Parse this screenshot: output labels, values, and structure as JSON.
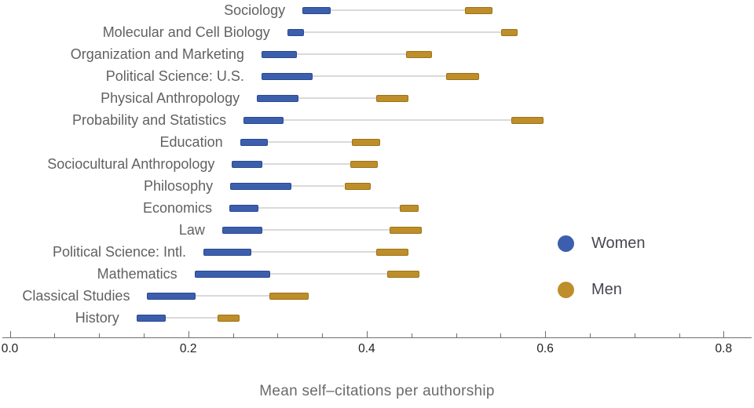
{
  "chart_data": {
    "type": "dumbbell",
    "orientation": "horizontal",
    "title": "",
    "xlabel": "Mean self–citations per authorship",
    "ylabel": "",
    "xlim": [
      0,
      0.83
    ],
    "x_major_tick_labels": [
      "0.0",
      "0.2",
      "0.4",
      "0.6",
      "0.8"
    ],
    "x_major_tick_values": [
      0,
      0.2,
      0.4,
      0.6,
      0.8
    ],
    "x_minor_tick_step": 0.05,
    "grid": false,
    "legend_position": "right-center",
    "series": [
      {
        "name": "Women",
        "color": "#3c5fad",
        "marker": "thick range bar"
      },
      {
        "name": "Men",
        "color": "#be8e2b",
        "marker": "thick range bar"
      }
    ],
    "rows": [
      {
        "category": "Sociology",
        "women_range": [
          0.328,
          0.358
        ],
        "men_range": [
          0.51,
          0.539
        ]
      },
      {
        "category": "Molecular and Cell Biology",
        "women_range": [
          0.311,
          0.328
        ],
        "men_range": [
          0.551,
          0.567
        ]
      },
      {
        "category": "Organization and Marketing",
        "women_range": [
          0.282,
          0.32
        ],
        "men_range": [
          0.444,
          0.471
        ]
      },
      {
        "category": "Political Science: U.S.",
        "women_range": [
          0.282,
          0.338
        ],
        "men_range": [
          0.489,
          0.524
        ]
      },
      {
        "category": "Physical Anthropology",
        "women_range": [
          0.277,
          0.322
        ],
        "men_range": [
          0.411,
          0.445
        ]
      },
      {
        "category": "Probability and Statistics",
        "women_range": [
          0.262,
          0.305
        ],
        "men_range": [
          0.562,
          0.596
        ]
      },
      {
        "category": "Education",
        "women_range": [
          0.258,
          0.287
        ],
        "men_range": [
          0.383,
          0.413
        ]
      },
      {
        "category": "Sociocultural Anthropology",
        "women_range": [
          0.249,
          0.281
        ],
        "men_range": [
          0.382,
          0.411
        ]
      },
      {
        "category": "Philosophy",
        "women_range": [
          0.247,
          0.314
        ],
        "men_range": [
          0.375,
          0.403
        ]
      },
      {
        "category": "Economics",
        "women_range": [
          0.246,
          0.277
        ],
        "men_range": [
          0.437,
          0.456
        ]
      },
      {
        "category": "Law",
        "women_range": [
          0.238,
          0.281
        ],
        "men_range": [
          0.426,
          0.46
        ]
      },
      {
        "category": "Political Science: Intl.",
        "women_range": [
          0.217,
          0.269
        ],
        "men_range": [
          0.411,
          0.445
        ]
      },
      {
        "category": "Mathematics",
        "women_range": [
          0.207,
          0.29
        ],
        "men_range": [
          0.423,
          0.457
        ]
      },
      {
        "category": "Classical Studies",
        "women_range": [
          0.154,
          0.206
        ],
        "men_range": [
          0.291,
          0.333
        ]
      },
      {
        "category": "History",
        "women_range": [
          0.142,
          0.173
        ],
        "men_range": [
          0.233,
          0.256
        ]
      }
    ]
  },
  "legend": {
    "items": [
      {
        "label": "Women",
        "color": "#3c5fad"
      },
      {
        "label": "Men",
        "color": "#be8e2b"
      }
    ]
  },
  "colors": {
    "women_fill": "#3c5fad",
    "women_border": "#2b4792",
    "men_fill": "#be8e2b",
    "men_border": "#9c7315",
    "connector": "#dadada",
    "axis": "#6e6e6e",
    "category_text": "#616161",
    "tick_text": "#222222",
    "legend_text": "#474850",
    "xlabel_text": "#6a6a6a"
  }
}
